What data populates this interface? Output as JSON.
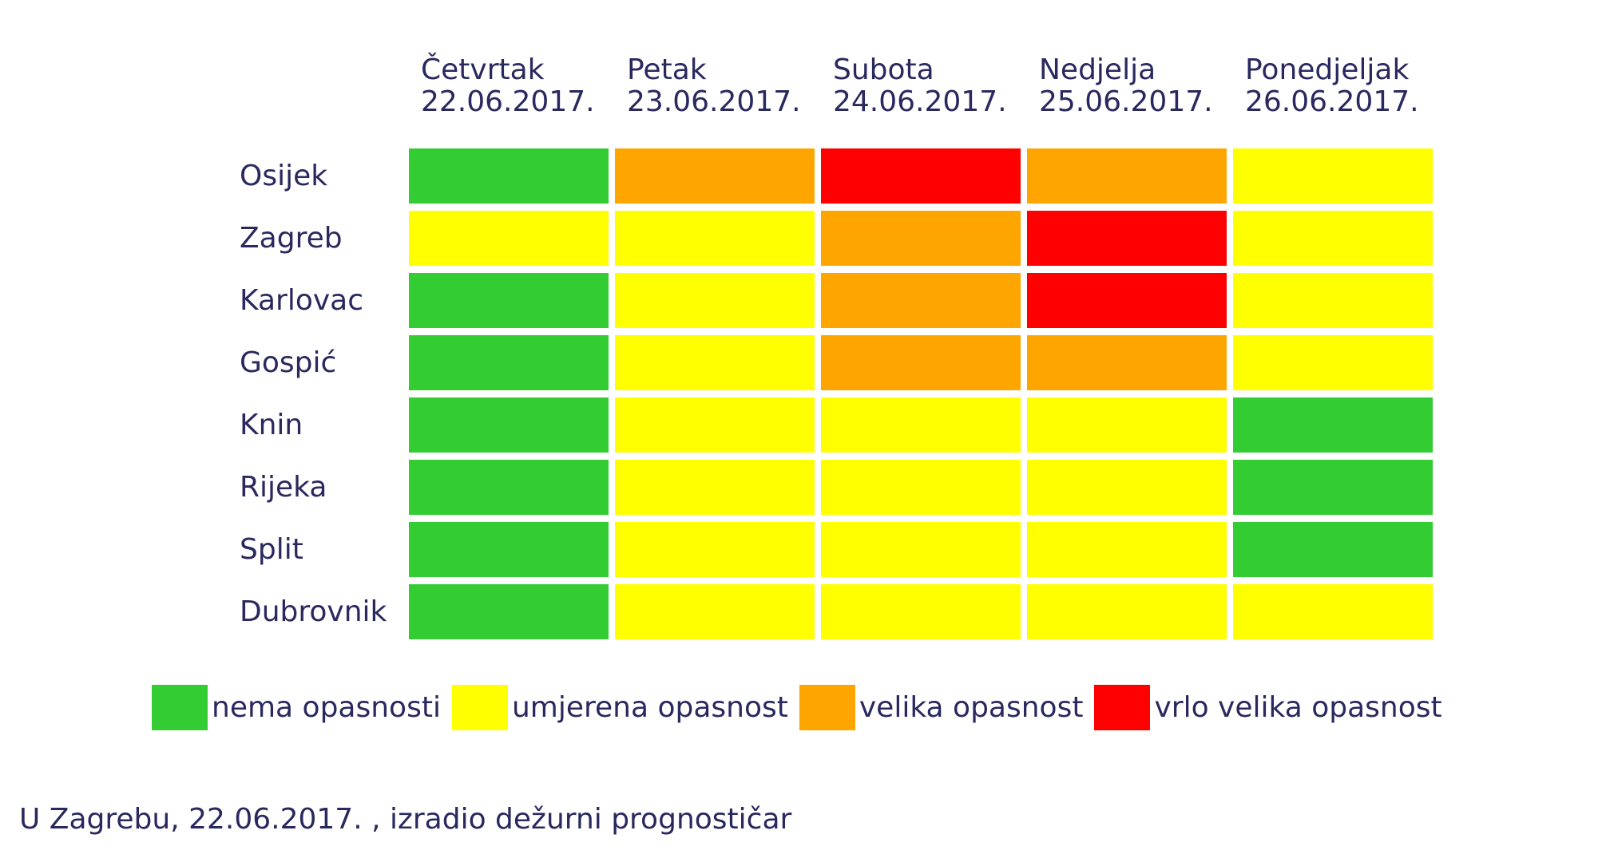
{
  "page": {
    "background": "#ffffff",
    "text_color": "#29295F"
  },
  "chart_data": {
    "type": "heatmap",
    "title": "",
    "columns": [
      {
        "day": "Četvrtak",
        "date": "22.06.2017."
      },
      {
        "day": "Petak",
        "date": "23.06.2017."
      },
      {
        "day": "Subota",
        "date": "24.06.2017."
      },
      {
        "day": "Nedjelja",
        "date": "25.06.2017."
      },
      {
        "day": "Ponedjeljak",
        "date": "26.06.2017."
      }
    ],
    "rows": [
      {
        "city": "Osijek",
        "levels": [
          "none",
          "high",
          "very-high",
          "high",
          "moderate"
        ]
      },
      {
        "city": "Zagreb",
        "levels": [
          "moderate",
          "moderate",
          "high",
          "very-high",
          "moderate"
        ]
      },
      {
        "city": "Karlovac",
        "levels": [
          "none",
          "moderate",
          "high",
          "very-high",
          "moderate"
        ]
      },
      {
        "city": "Gospić",
        "levels": [
          "none",
          "moderate",
          "high",
          "high",
          "moderate"
        ]
      },
      {
        "city": "Knin",
        "levels": [
          "none",
          "moderate",
          "moderate",
          "moderate",
          "none"
        ]
      },
      {
        "city": "Rijeka",
        "levels": [
          "none",
          "moderate",
          "moderate",
          "moderate",
          "none"
        ]
      },
      {
        "city": "Split",
        "levels": [
          "none",
          "moderate",
          "moderate",
          "moderate",
          "none"
        ]
      },
      {
        "city": "Dubrovnik",
        "levels": [
          "none",
          "moderate",
          "moderate",
          "moderate",
          "moderate"
        ]
      }
    ],
    "levels": {
      "none": {
        "label": "nema opasnosti",
        "color": "#33CC33"
      },
      "moderate": {
        "label": "umjerena opasnost",
        "color": "#FFFF00"
      },
      "high": {
        "label": "velika opasnost",
        "color": "#FFA500"
      },
      "very-high": {
        "label": "vrlo velika opasnost",
        "color": "#FF0000"
      }
    },
    "legend_order": [
      "none",
      "moderate",
      "high",
      "very-high"
    ],
    "legend_position": "bottom",
    "grid": false
  },
  "footer": {
    "text": "U Zagrebu, 22.06.2017. , izradio dežurni prognostičar"
  }
}
